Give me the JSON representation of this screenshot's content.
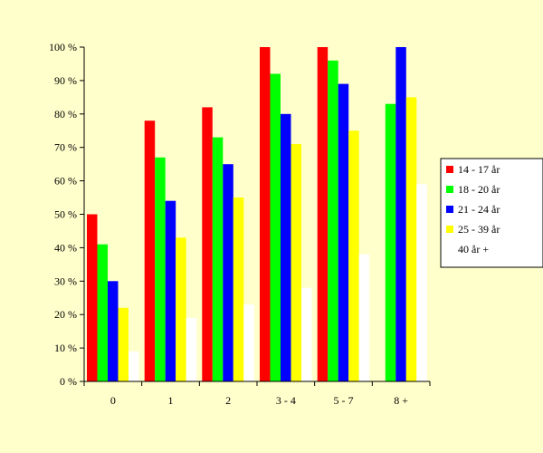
{
  "chart_data": {
    "type": "bar",
    "title": "",
    "xlabel": "",
    "ylabel": "",
    "ylim": [
      0,
      100
    ],
    "yticks": [
      "0 %",
      "10 %",
      "20 %",
      "30 %",
      "40 %",
      "50 %",
      "60 %",
      "70 %",
      "80 %",
      "90 %",
      "100 %"
    ],
    "categories": [
      "0",
      "1",
      "2",
      "3 - 4",
      "5 - 7",
      "8 +"
    ],
    "grid": false,
    "legend_position": "right",
    "series": [
      {
        "name": "14 - 17 år",
        "color": "#FF0000",
        "values": [
          50,
          78,
          82,
          100,
          100,
          0
        ]
      },
      {
        "name": "18 - 20 år",
        "color": "#00FF00",
        "values": [
          41,
          67,
          73,
          92,
          96,
          83
        ]
      },
      {
        "name": "21 - 24 år",
        "color": "#0000FF",
        "values": [
          30,
          54,
          65,
          80,
          89,
          100
        ]
      },
      {
        "name": "25 - 39 år",
        "color": "#FFFF00",
        "values": [
          22,
          43,
          55,
          71,
          75,
          85
        ]
      },
      {
        "name": "40 år +",
        "color": "#FFFFFF",
        "values": [
          9,
          19,
          23,
          28,
          38,
          59
        ]
      }
    ]
  }
}
